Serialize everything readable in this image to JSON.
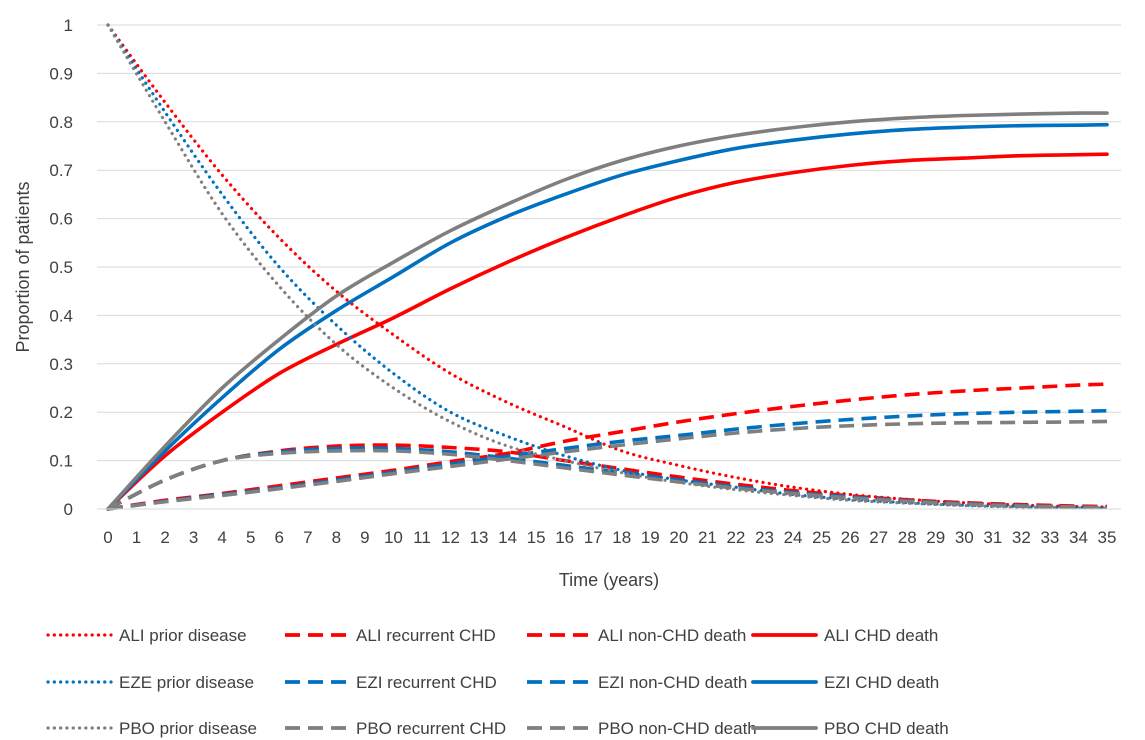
{
  "chart_data": {
    "type": "line",
    "title": "",
    "xlabel": "Time (years)",
    "ylabel": "Proportion of patients",
    "xlim": [
      0,
      35
    ],
    "ylim": [
      0,
      1
    ],
    "x_ticks": [
      0,
      1,
      2,
      3,
      4,
      5,
      6,
      7,
      8,
      9,
      10,
      11,
      12,
      13,
      14,
      15,
      16,
      17,
      18,
      19,
      20,
      21,
      22,
      23,
      24,
      25,
      26,
      27,
      28,
      29,
      30,
      31,
      32,
      33,
      34,
      35
    ],
    "y_ticks": [
      0,
      0.1,
      0.2,
      0.3,
      0.4,
      0.5,
      0.6,
      0.7,
      0.8,
      0.9,
      1
    ],
    "y_tick_labels": [
      "0",
      "0.1",
      "0.2",
      "0.3",
      "0.4",
      "0.5",
      "0.6",
      "0.7",
      "0.8",
      "0.9",
      "1"
    ],
    "grid": "horizontal",
    "legend_position": "bottom",
    "x": [
      0,
      2,
      4,
      6,
      8,
      10,
      12,
      14,
      16,
      18,
      20,
      22,
      24,
      26,
      28,
      30,
      32,
      34,
      35
    ],
    "series": [
      {
        "name": "ALI prior disease",
        "color": "#ff0000",
        "style": "dotted",
        "values": [
          1.0,
          0.84,
          0.69,
          0.56,
          0.45,
          0.36,
          0.28,
          0.22,
          0.17,
          0.12,
          0.09,
          0.065,
          0.045,
          0.03,
          0.02,
          0.013,
          0.008,
          0.005,
          0.004
        ]
      },
      {
        "name": "ALI recurrent CHD",
        "color": "#ff0000",
        "style": "dashed",
        "values": [
          0.0,
          0.06,
          0.1,
          0.12,
          0.13,
          0.132,
          0.127,
          0.118,
          0.1,
          0.083,
          0.066,
          0.051,
          0.038,
          0.027,
          0.019,
          0.013,
          0.009,
          0.006,
          0.005
        ]
      },
      {
        "name": "ALI non-CHD death",
        "color": "#ff0000",
        "style": "dashed",
        "values": [
          0.0,
          0.018,
          0.032,
          0.048,
          0.064,
          0.08,
          0.098,
          0.115,
          0.14,
          0.16,
          0.18,
          0.197,
          0.212,
          0.225,
          0.236,
          0.244,
          0.25,
          0.256,
          0.258
        ]
      },
      {
        "name": "ALI CHD death",
        "color": "#ff0000",
        "style": "solid",
        "values": [
          0.0,
          0.11,
          0.2,
          0.28,
          0.34,
          0.395,
          0.455,
          0.51,
          0.56,
          0.605,
          0.645,
          0.675,
          0.695,
          0.71,
          0.72,
          0.725,
          0.73,
          0.732,
          0.733
        ]
      },
      {
        "name": "EZE prior disease",
        "color": "#0070c0",
        "style": "dotted",
        "values": [
          1.0,
          0.82,
          0.65,
          0.5,
          0.38,
          0.28,
          0.2,
          0.15,
          0.11,
          0.08,
          0.06,
          0.045,
          0.03,
          0.02,
          0.013,
          0.008,
          0.005,
          0.003,
          0.002
        ]
      },
      {
        "name": "EZI recurrent CHD",
        "color": "#0070c0",
        "style": "dashed",
        "values": [
          0.0,
          0.06,
          0.1,
          0.118,
          0.125,
          0.125,
          0.118,
          0.105,
          0.09,
          0.075,
          0.06,
          0.046,
          0.034,
          0.025,
          0.017,
          0.011,
          0.007,
          0.004,
          0.003
        ]
      },
      {
        "name": "EZI non-CHD death",
        "color": "#0070c0",
        "style": "dashed",
        "values": [
          0.0,
          0.016,
          0.03,
          0.044,
          0.06,
          0.076,
          0.093,
          0.109,
          0.125,
          0.14,
          0.152,
          0.165,
          0.176,
          0.185,
          0.192,
          0.197,
          0.2,
          0.202,
          0.203
        ]
      },
      {
        "name": "EZI CHD death",
        "color": "#0070c0",
        "style": "solid",
        "values": [
          0.0,
          0.12,
          0.23,
          0.33,
          0.41,
          0.48,
          0.55,
          0.605,
          0.65,
          0.69,
          0.72,
          0.745,
          0.762,
          0.775,
          0.784,
          0.789,
          0.792,
          0.793,
          0.794
        ]
      },
      {
        "name": "PBO prior disease",
        "color": "#7f7f7f",
        "style": "dotted",
        "values": [
          1.0,
          0.8,
          0.61,
          0.46,
          0.34,
          0.25,
          0.18,
          0.13,
          0.1,
          0.075,
          0.055,
          0.04,
          0.028,
          0.018,
          0.012,
          0.007,
          0.004,
          0.002,
          0.002
        ]
      },
      {
        "name": "PBO recurrent CHD",
        "color": "#7f7f7f",
        "style": "dashed",
        "values": [
          0.0,
          0.06,
          0.1,
          0.115,
          0.12,
          0.12,
          0.113,
          0.1,
          0.085,
          0.07,
          0.056,
          0.043,
          0.032,
          0.023,
          0.016,
          0.01,
          0.006,
          0.004,
          0.003
        ]
      },
      {
        "name": "PBO non-CHD death",
        "color": "#7f7f7f",
        "style": "dashed",
        "values": [
          0.0,
          0.015,
          0.028,
          0.042,
          0.057,
          0.073,
          0.088,
          0.103,
          0.118,
          0.132,
          0.145,
          0.157,
          0.166,
          0.172,
          0.176,
          0.178,
          0.179,
          0.18,
          0.181
        ]
      },
      {
        "name": "PBO CHD death",
        "color": "#7f7f7f",
        "style": "solid",
        "values": [
          0.0,
          0.13,
          0.25,
          0.35,
          0.44,
          0.51,
          0.575,
          0.63,
          0.68,
          0.72,
          0.75,
          0.772,
          0.788,
          0.8,
          0.808,
          0.813,
          0.816,
          0.818,
          0.818
        ]
      }
    ]
  }
}
